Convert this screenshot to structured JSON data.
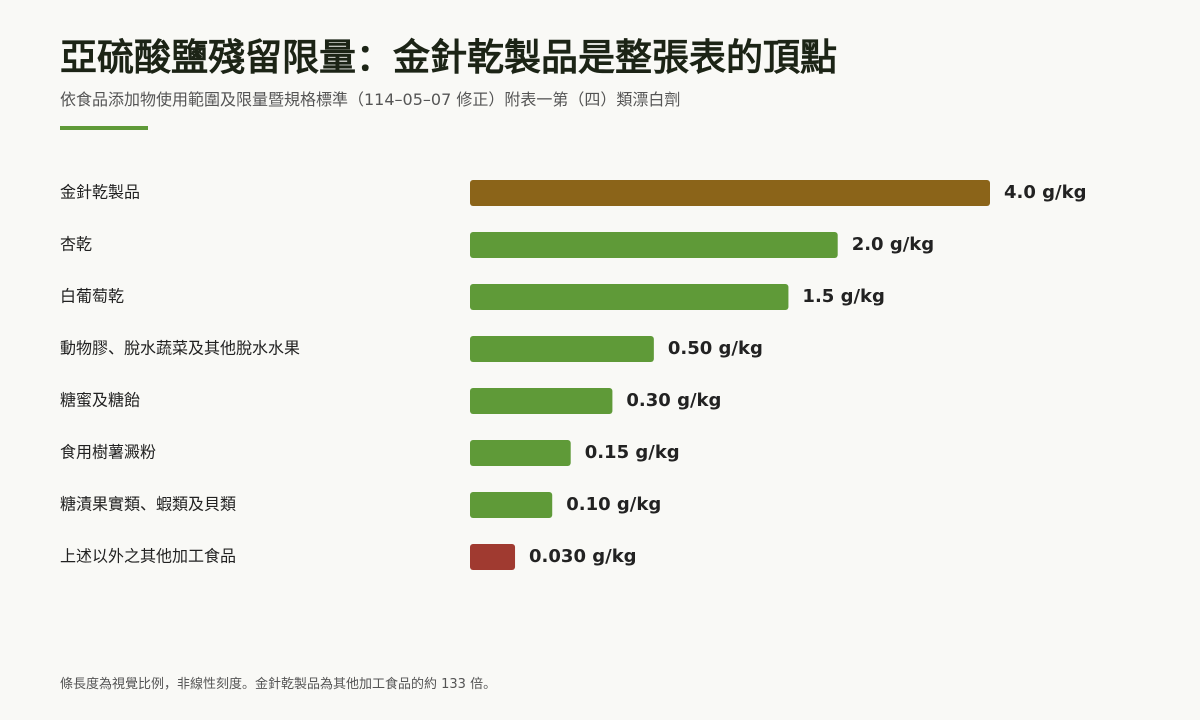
{
  "title": "亞硫酸鹽殘留限量：金針乾製品是整張表的頂點",
  "subtitle": "依食品添加物使用範圍及限量暨規格標準（114–05–07 修正）附表一第（四）類漂白劑",
  "footnote": "條長度為視覺比例，非線性刻度。金針乾製品為其他加工食品的約 133 倍。",
  "colors": {
    "highlight": "#8b6419",
    "normal": "#5f9a38",
    "lowest": "#a03a30",
    "accent": "#5f9a38",
    "background": "#f9f9f6"
  },
  "chart_data": {
    "type": "bar",
    "orientation": "horizontal",
    "unit": "g/kg",
    "categories": [
      "金針乾製品",
      "杏乾",
      "白葡萄乾",
      "動物膠、脫水蔬菜及其他脫水水果",
      "糖蜜及糖飴",
      "食用樹薯澱粉",
      "糖漬果實類、蝦類及貝類",
      "上述以外之其他加工食品"
    ],
    "values": [
      4.0,
      2.0,
      1.5,
      0.5,
      0.3,
      0.15,
      0.1,
      0.03
    ],
    "value_labels": [
      "4.0 g/kg",
      "2.0 g/kg",
      "1.5 g/kg",
      "0.50 g/kg",
      "0.30 g/kg",
      "0.15 g/kg",
      "0.10 g/kg",
      "0.030 g/kg"
    ],
    "bar_colors": [
      "highlight",
      "normal",
      "normal",
      "normal",
      "normal",
      "normal",
      "normal",
      "lowest"
    ],
    "scale": "visual (non-linear)",
    "grid": false,
    "legend": "none"
  }
}
